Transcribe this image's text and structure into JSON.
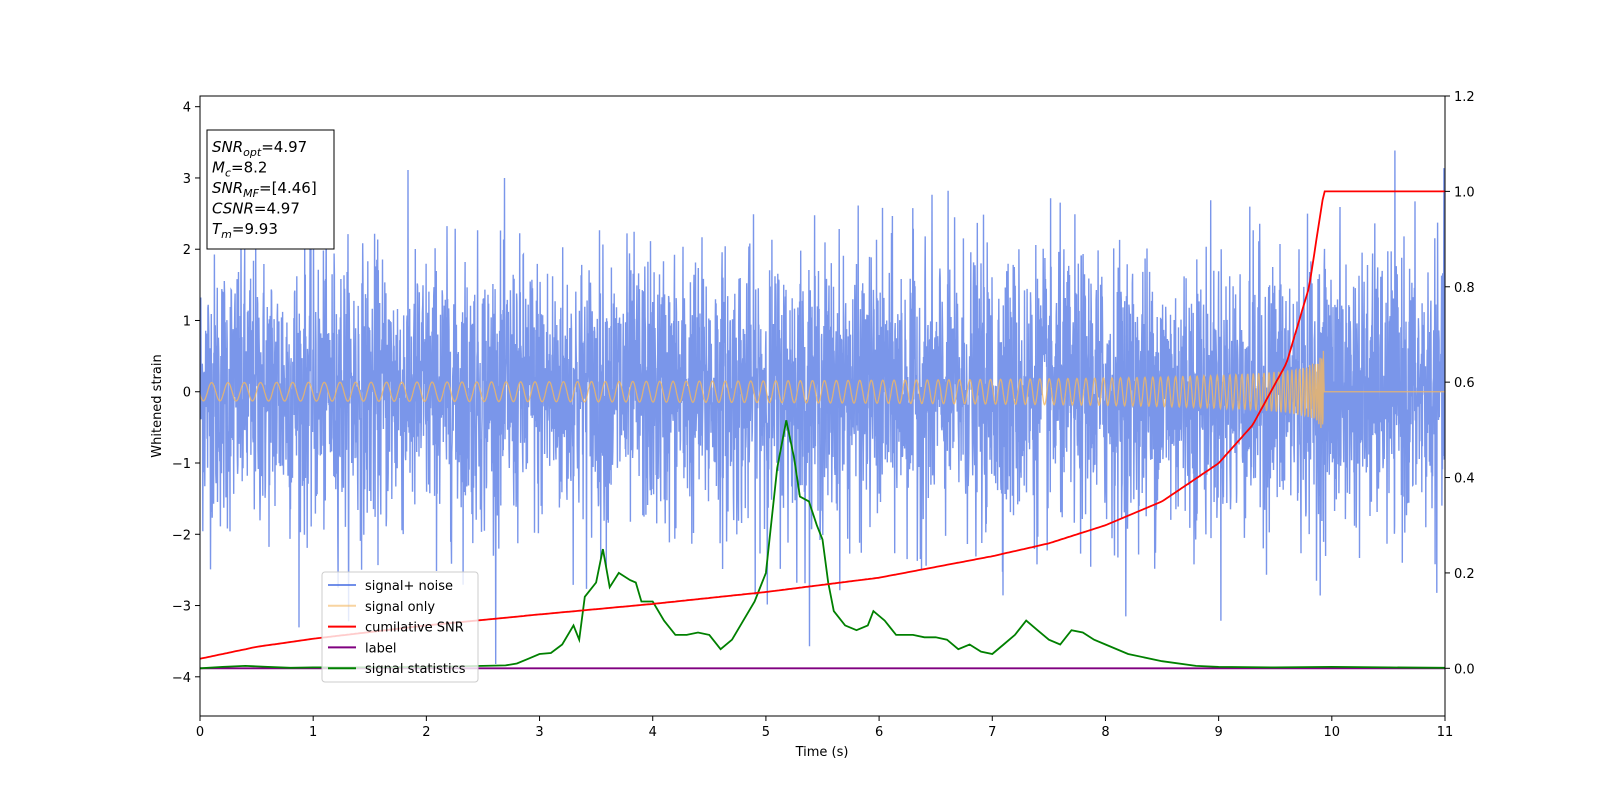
{
  "chart_data": {
    "type": "line",
    "title": "",
    "xlabel": "Time (s)",
    "ylabel": "Whitened strain",
    "y2label": "",
    "xlim": [
      0,
      11
    ],
    "ylim": [
      -4.55,
      4.15
    ],
    "y2lim": [
      -0.1,
      1.2
    ],
    "xticks": [
      0,
      1,
      2,
      3,
      4,
      5,
      6,
      7,
      8,
      9,
      10,
      11
    ],
    "yticks": [
      -4,
      -3,
      -2,
      -1,
      0,
      1,
      2,
      3,
      4
    ],
    "y2ticks": [
      0.0,
      0.2,
      0.4,
      0.6,
      0.8,
      1.0,
      1.2
    ],
    "y2tick_labels": [
      "0.0",
      "0.2",
      "0.4",
      "0.6",
      "0.8",
      "1.0",
      "1.2"
    ],
    "grid": false,
    "legend_position": "lower-left",
    "annotation": {
      "lines": [
        {
          "var": "SNR",
          "sub": "opt",
          "value": "=4.97"
        },
        {
          "var": "M",
          "sub": "c",
          "value": "=8.2"
        },
        {
          "var": "SNR",
          "sub": "MF",
          "value": "=[4.46]"
        },
        {
          "var": "CSNR",
          "sub": "",
          "value": "=4.97"
        },
        {
          "var": "T",
          "sub": "m",
          "value": "=9.93"
        }
      ]
    },
    "series": [
      {
        "name": "signal+ noise",
        "axis": "left",
        "color": "#4169e1",
        "description": "whitened strain noise, std ~0.95, spikes to ~3.8",
        "noise_std": 0.95,
        "noise_max": 3.76,
        "noise_min": -4.15
      },
      {
        "name": "signal only",
        "axis": "left",
        "color": "#f4b860",
        "description": "chirp waveform rising to merger at t=9.93",
        "merger_time": 9.93,
        "peak_amplitude": 0.72
      },
      {
        "name": "cumilative SNR",
        "axis": "right",
        "color": "#ff0000",
        "x": [
          0,
          0.5,
          1,
          2,
          3,
          4,
          5,
          6,
          7,
          7.5,
          8,
          8.5,
          9,
          9.3,
          9.6,
          9.8,
          9.93,
          10,
          11
        ],
        "y": [
          0.02,
          0.045,
          0.062,
          0.09,
          0.113,
          0.135,
          0.16,
          0.19,
          0.235,
          0.262,
          0.3,
          0.35,
          0.43,
          0.51,
          0.64,
          0.8,
          1.0,
          1.0,
          1.0
        ]
      },
      {
        "name": "label",
        "axis": "right",
        "color": "#800080",
        "x": [
          0,
          11
        ],
        "y": [
          0,
          0
        ]
      },
      {
        "name": "signal statistics",
        "axis": "right",
        "color": "#008000",
        "x": [
          0,
          0.2,
          0.4,
          0.6,
          0.8,
          1.0,
          1.5,
          2.0,
          2.5,
          2.7,
          2.8,
          2.9,
          3.0,
          3.1,
          3.2,
          3.3,
          3.35,
          3.4,
          3.5,
          3.56,
          3.62,
          3.7,
          3.8,
          3.85,
          3.9,
          4.0,
          4.1,
          4.2,
          4.3,
          4.4,
          4.5,
          4.6,
          4.7,
          4.8,
          4.9,
          5.0,
          5.1,
          5.18,
          5.25,
          5.3,
          5.38,
          5.45,
          5.5,
          5.55,
          5.6,
          5.7,
          5.8,
          5.9,
          5.95,
          6.05,
          6.15,
          6.3,
          6.4,
          6.5,
          6.6,
          6.7,
          6.8,
          6.9,
          7.0,
          7.1,
          7.2,
          7.3,
          7.4,
          7.5,
          7.6,
          7.7,
          7.8,
          7.9,
          8.0,
          8.2,
          8.5,
          8.8,
          9.0,
          9.5,
          10.0,
          10.5,
          11.0
        ],
        "y": [
          0.0,
          0.003,
          0.005,
          0.003,
          0.001,
          0.002,
          0.002,
          0.003,
          0.005,
          0.006,
          0.01,
          0.02,
          0.03,
          0.032,
          0.05,
          0.09,
          0.06,
          0.15,
          0.18,
          0.25,
          0.17,
          0.2,
          0.185,
          0.18,
          0.14,
          0.14,
          0.1,
          0.07,
          0.07,
          0.075,
          0.07,
          0.04,
          0.06,
          0.1,
          0.14,
          0.2,
          0.42,
          0.52,
          0.44,
          0.36,
          0.35,
          0.3,
          0.27,
          0.18,
          0.12,
          0.09,
          0.08,
          0.09,
          0.12,
          0.1,
          0.07,
          0.07,
          0.065,
          0.065,
          0.06,
          0.04,
          0.05,
          0.035,
          0.03,
          0.05,
          0.07,
          0.1,
          0.08,
          0.06,
          0.05,
          0.08,
          0.075,
          0.06,
          0.05,
          0.03,
          0.015,
          0.005,
          0.003,
          0.002,
          0.003,
          0.002,
          0.001
        ]
      }
    ]
  }
}
